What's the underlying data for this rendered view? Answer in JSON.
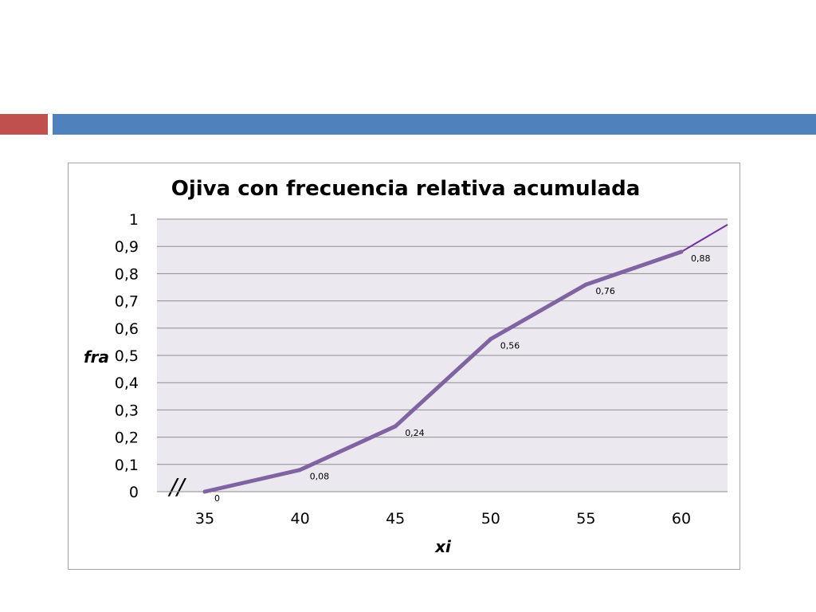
{
  "chart_data": {
    "type": "line",
    "title": "Ojiva con frecuencia relativa acumulada",
    "xlabel": "xi",
    "ylabel": "fra",
    "categories": [
      "35",
      "40",
      "45",
      "50",
      "55",
      "60"
    ],
    "x": [
      35,
      40,
      45,
      50,
      55,
      60
    ],
    "series": [
      {
        "values": [
          0,
          0.08,
          0.24,
          0.56,
          0.76,
          0.88
        ],
        "labels": [
          "0",
          "0,08",
          "0,24",
          "0,56",
          "0,76",
          "0,88"
        ],
        "color": "#8064a2"
      }
    ],
    "extension_end_value": 0.98,
    "ylim": [
      0,
      1
    ],
    "yticks": [
      0,
      0.1,
      0.2,
      0.3,
      0.4,
      0.5,
      0.6,
      0.7,
      0.8,
      0.9,
      1
    ],
    "ytick_labels": [
      "0",
      "0,1",
      "0,2",
      "0,3",
      "0,4",
      "0,5",
      "0,6",
      "0,7",
      "0,8",
      "0,9",
      "1"
    ],
    "axis_break_mark": "//",
    "grid": true,
    "plot_background": "#ebe8f0",
    "gridline_color": "#8c8c8c",
    "extension_color": "#7030a0"
  },
  "header": {
    "accent_left_color": "#c0504d",
    "accent_right_color": "#4f81bd"
  }
}
